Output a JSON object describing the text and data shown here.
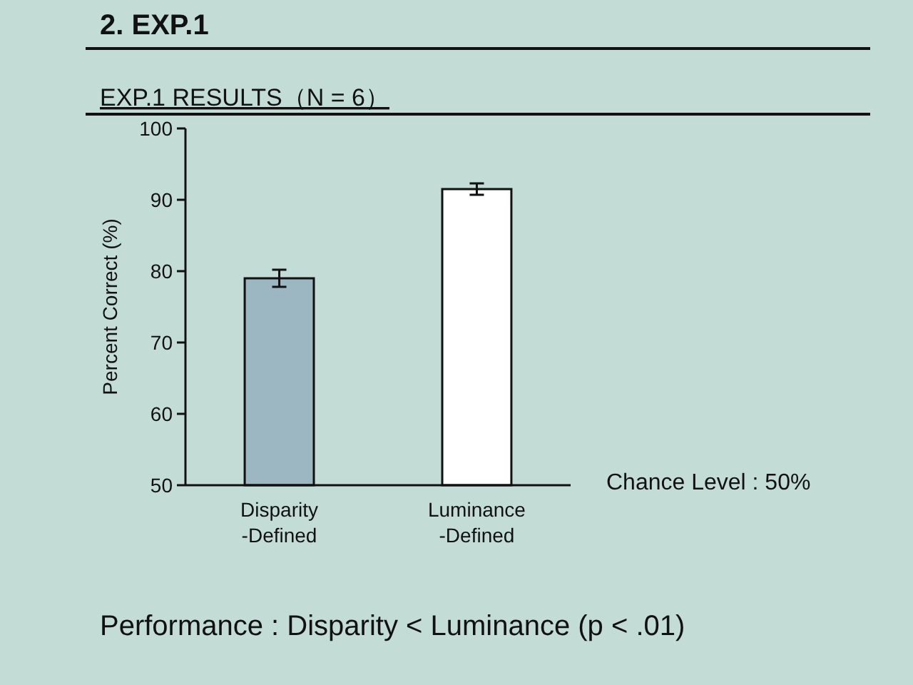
{
  "chart_data": {
    "type": "bar",
    "title": "2.  EXP.1",
    "subtitle": "EXP.1  RESULTS（N = 6）",
    "ylabel": "Percent Correct (%)",
    "categories": [
      "Disparity\n-Defined",
      "Luminance\n-Defined"
    ],
    "values": [
      79,
      91.5
    ],
    "errors": [
      1.2,
      0.8
    ],
    "colors": [
      "#9db7c2",
      "#ffffff"
    ],
    "ylim": [
      50,
      100
    ],
    "yticks": [
      50,
      60,
      70,
      80,
      90,
      100
    ],
    "grid": false,
    "annotations": [
      "Chance Level : 50%",
      "Performance : Disparity < Luminance (p < .01)"
    ]
  }
}
